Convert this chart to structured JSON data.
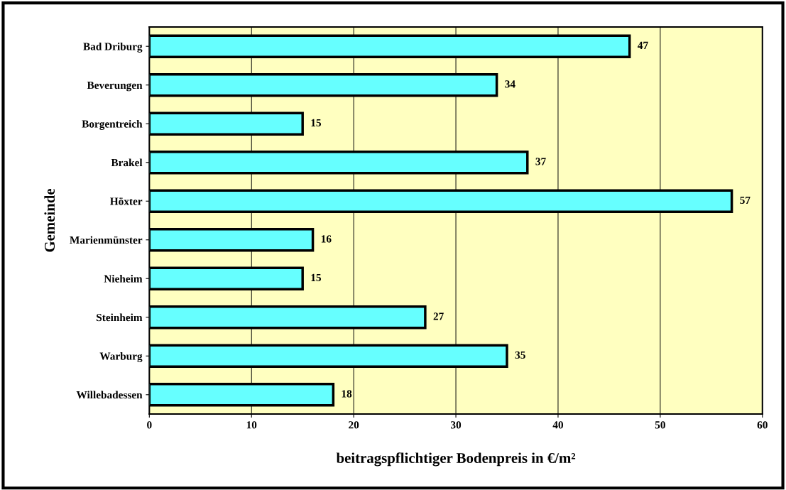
{
  "chart_data": {
    "type": "bar",
    "orientation": "horizontal",
    "categories": [
      "Bad Driburg",
      "Beverungen",
      "Borgentreich",
      "Brakel",
      "Höxter",
      "Marienmünster",
      "Nieheim",
      "Steinheim",
      "Warburg",
      "Willebadessen"
    ],
    "values": [
      47,
      34,
      15,
      37,
      57,
      16,
      15,
      27,
      35,
      18
    ],
    "color": "#66ffff",
    "xlim": [
      0,
      60
    ],
    "xticks": [
      0,
      10,
      20,
      30,
      40,
      50,
      60
    ],
    "grid": "x",
    "data_labels": true,
    "xlabel": "beitragspflichtiger Bodenpreis in €/m²",
    "ylabel": "Gemeinde"
  }
}
